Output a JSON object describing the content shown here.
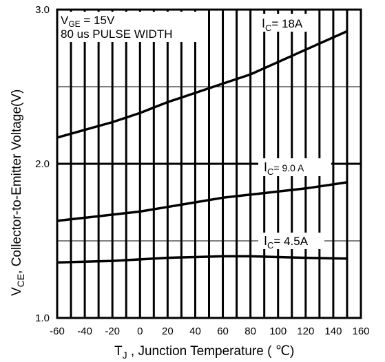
{
  "chart_data": {
    "type": "line",
    "xlabel": {
      "main": "T",
      "sub": "J",
      "rest": " , Junction Temperature ( ℃)"
    },
    "ylabel": {
      "main": "V",
      "sub": "CE",
      "rest": ", Collector-to-Emitter Voltage(V)"
    },
    "xlim": [
      -60,
      160
    ],
    "ylim": [
      1.0,
      3.0
    ],
    "grid": true,
    "x_ticks": [
      "-60",
      "-40",
      "-20",
      "0",
      "20",
      "40",
      "60",
      "80",
      "100",
      "120",
      "140",
      "160"
    ],
    "y_ticks": [
      "1.0",
      "2.0",
      "3.0"
    ],
    "conditions": {
      "line1_main": "V",
      "line1_sub": "GE",
      "line1_rest": " = 15V",
      "line2": "80 us PULSE WIDTH"
    },
    "series": [
      {
        "name": "I_C= 18A",
        "label_main": "I",
        "label_sub": "C",
        "label_rest": "=  18A",
        "x": [
          -60,
          -40,
          -20,
          0,
          20,
          40,
          60,
          80,
          100,
          120,
          150
        ],
        "y": [
          2.17,
          2.22,
          2.27,
          2.33,
          2.4,
          2.46,
          2.52,
          2.58,
          2.66,
          2.74,
          2.86
        ]
      },
      {
        "name": "I_C= 9.0 A",
        "label_main": "I",
        "label_sub": "C",
        "label_rest": "=  9.0 A",
        "x": [
          -60,
          -40,
          -20,
          0,
          20,
          40,
          60,
          80,
          100,
          120,
          150
        ],
        "y": [
          1.63,
          1.65,
          1.67,
          1.69,
          1.72,
          1.75,
          1.78,
          1.8,
          1.82,
          1.84,
          1.88
        ]
      },
      {
        "name": "I_C= 4.5A",
        "label_main": "I",
        "label_sub": "C",
        "label_rest": "=  4.5A",
        "x": [
          -60,
          -40,
          -20,
          0,
          20,
          40,
          60,
          80,
          100,
          120,
          150
        ],
        "y": [
          1.36,
          1.365,
          1.37,
          1.38,
          1.39,
          1.395,
          1.4,
          1.4,
          1.395,
          1.39,
          1.385
        ]
      }
    ]
  }
}
